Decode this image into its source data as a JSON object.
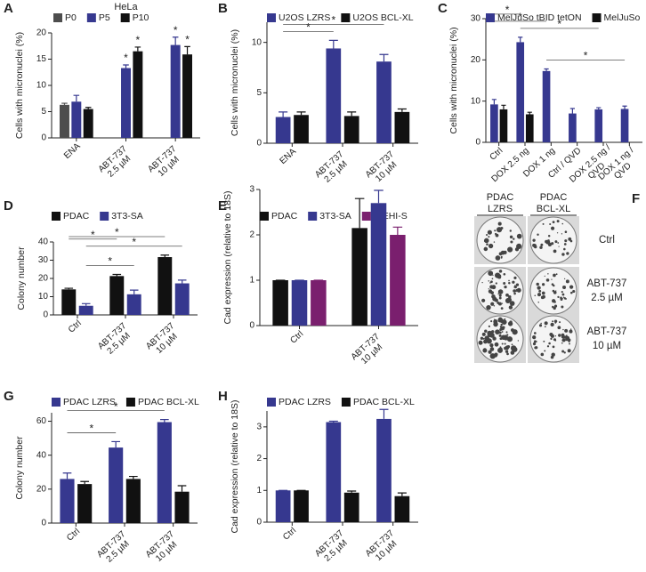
{
  "chart_data": [
    {
      "panel": "A",
      "type": "bar",
      "title": "HeLa",
      "y_label": "Cells with micronuclei (%)",
      "categories": [
        "ENA",
        [
          "ABT-737",
          "2.5 µM"
        ],
        [
          "ABT-737",
          "10 µM"
        ]
      ],
      "series": [
        {
          "name": "P0",
          "color": "#4d4d4d",
          "values": [
            6.3,
            null,
            null
          ],
          "errors": [
            0.3,
            null,
            null
          ]
        },
        {
          "name": "P5",
          "color": "#36388f",
          "values": [
            6.9,
            13.3,
            17.7
          ],
          "errors": [
            1.2,
            0.6,
            1.5
          ]
        },
        {
          "name": "P10",
          "color": "#111111",
          "values": [
            5.5,
            16.5,
            15.9
          ],
          "errors": [
            0.3,
            0.8,
            1.5
          ]
        }
      ],
      "ylim": [
        0,
        20
      ],
      "yticks": [
        0,
        5,
        10,
        15,
        20
      ],
      "significance": [
        {
          "label": "*",
          "series": 1,
          "category": 1
        },
        {
          "label": "*",
          "series": 2,
          "category": 1
        },
        {
          "label": "*",
          "series": 1,
          "category": 2
        },
        {
          "label": "*",
          "series": 2,
          "category": 2
        }
      ]
    },
    {
      "panel": "B",
      "type": "bar",
      "y_label": "Cells with micronuclei (%)",
      "categories": [
        "ENA",
        [
          "ABT-737",
          "2.5 µM"
        ],
        [
          "ABT-737",
          "10 µM"
        ]
      ],
      "series": [
        {
          "name": "U2OS LZRS",
          "color": "#36388f",
          "values": [
            2.6,
            9.4,
            8.1
          ],
          "errors": [
            0.5,
            0.8,
            0.7
          ]
        },
        {
          "name": "U2OS BCL-XL",
          "color": "#111111",
          "values": [
            2.8,
            2.7,
            3.1
          ],
          "errors": [
            0.3,
            0.4,
            0.3
          ]
        }
      ],
      "ylim": [
        0,
        12
      ],
      "yticks": [
        0,
        5,
        10
      ],
      "brackets": [
        {
          "label": "*",
          "series": 0,
          "from": 0,
          "to": 1
        },
        {
          "label": "*",
          "series": 0,
          "from": 0,
          "to": 2
        }
      ]
    },
    {
      "panel": "C",
      "type": "bar",
      "y_label": "Cells with micronuclei (%)",
      "categories": [
        "Ctrl",
        "DOX 2.5 ng",
        "DOX 1 ng",
        "Ctrl / QVD",
        [
          "DOX 2.5 ng /",
          "QVD"
        ],
        [
          "DOX 1 ng /",
          "QVD"
        ]
      ],
      "series": [
        {
          "name": "MelJuSo tBID tetON",
          "color": "#36388f",
          "values": [
            9.2,
            24.3,
            17.3,
            7.0,
            8.0,
            8.1
          ],
          "errors": [
            1.2,
            1.2,
            0.5,
            1.2,
            0.4,
            0.7
          ]
        },
        {
          "name": "MelJuSo",
          "color": "#111111",
          "values": [
            8.0,
            6.8,
            null,
            null,
            null,
            null
          ],
          "errors": [
            1.0,
            0.5,
            null,
            null,
            null,
            null
          ]
        }
      ],
      "ylim": [
        0,
        30
      ],
      "yticks": [
        0,
        10,
        20,
        30
      ],
      "brackets": [
        {
          "label": "*",
          "series": 0,
          "from": 2,
          "to": 5
        },
        {
          "label": "*",
          "series": 0,
          "from": 1,
          "to": 4
        },
        {
          "label": "*",
          "series": 0,
          "from": 0,
          "to": 2
        },
        {
          "label": "*",
          "series": 0,
          "from": 0,
          "to": 1
        }
      ]
    },
    {
      "panel": "D",
      "type": "bar",
      "y_label": "Colony number",
      "categories": [
        "Ctrl",
        [
          "ABT-737",
          "2.5 µM"
        ],
        [
          "ABT-737",
          "10 µM"
        ]
      ],
      "series": [
        {
          "name": "PDAC",
          "color": "#111111",
          "values": [
            14,
            21.3,
            31.7
          ],
          "errors": [
            0.6,
            0.9,
            1.1
          ]
        },
        {
          "name": "3T3-SA",
          "color": "#36388f",
          "values": [
            5,
            11.3,
            17.3
          ],
          "errors": [
            1.2,
            2.3,
            1.8
          ]
        }
      ],
      "ylim": [
        0,
        40
      ],
      "yticks": [
        0,
        10,
        20,
        30,
        40
      ],
      "brackets": [
        {
          "label": "*",
          "series": 1,
          "from": 0,
          "to": 1
        },
        {
          "label": "*",
          "series": 1,
          "from": 0,
          "to": 2
        },
        {
          "label": "*",
          "series": 0,
          "from": 0,
          "to": 1
        },
        {
          "label": "*",
          "series": 0,
          "from": 0,
          "to": 2
        }
      ]
    },
    {
      "panel": "E",
      "type": "bar",
      "y_label": "Cad expression (relative to 18S)",
      "categories": [
        "Ctrl",
        [
          "ABT-737",
          "10 µM"
        ]
      ],
      "series": [
        {
          "name": "PDAC",
          "color": "#111111",
          "values": [
            1,
            2.15
          ],
          "errors": [
            0,
            0.65
          ]
        },
        {
          "name": "3T3-SA",
          "color": "#36388f",
          "values": [
            1,
            2.7
          ],
          "errors": [
            0,
            0.28
          ]
        },
        {
          "name": "WEHI-S",
          "color": "#7a1f6e",
          "values": [
            1,
            2.0
          ],
          "errors": [
            0,
            0.17
          ]
        }
      ],
      "ylim": [
        0,
        3
      ],
      "yticks": [
        0,
        1,
        2,
        3
      ]
    },
    {
      "panel": "G",
      "type": "bar",
      "y_label": "Colony number",
      "categories": [
        "Ctrl",
        [
          "ABT-737",
          "2.5 µM"
        ],
        [
          "ABT-737",
          "10 µM"
        ]
      ],
      "series": [
        {
          "name": "PDAC LZRS",
          "color": "#36388f",
          "values": [
            26,
            44.5,
            59.5
          ],
          "errors": [
            3.5,
            3.5,
            1.5
          ]
        },
        {
          "name": "PDAC BCL-XL",
          "color": "#111111",
          "values": [
            23,
            26,
            18.5
          ],
          "errors": [
            1.5,
            1.5,
            3.5
          ]
        }
      ],
      "ylim": [
        0,
        65
      ],
      "yticks": [
        0,
        20,
        40,
        60
      ],
      "brackets": [
        {
          "label": "*",
          "series": 0,
          "from": 0,
          "to": 1
        },
        {
          "label": "*",
          "series": 0,
          "from": 0,
          "to": 2
        }
      ]
    },
    {
      "panel": "H",
      "type": "bar",
      "y_label": "Cad expression (relative to 18S)",
      "categories": [
        "Ctrl",
        [
          "ABT-737",
          "2.5 µM"
        ],
        [
          "ABT-737",
          "10 µM"
        ]
      ],
      "series": [
        {
          "name": "PDAC LZRS",
          "color": "#36388f",
          "values": [
            1,
            3.15,
            3.25
          ],
          "errors": [
            0,
            0.03,
            0.3
          ]
        },
        {
          "name": "PDAC BCL-XL",
          "color": "#111111",
          "values": [
            1,
            0.93,
            0.82
          ],
          "errors": [
            0,
            0.05,
            0.1
          ]
        }
      ],
      "ylim": [
        0,
        3.5
      ],
      "yticks": [
        0,
        1,
        2,
        3
      ]
    }
  ],
  "panel_f": {
    "panel": "F",
    "columns": [
      [
        "PDAC",
        "LZRS"
      ],
      [
        "PDAC",
        "BCL-XL"
      ]
    ],
    "rows": [
      [
        "Ctrl"
      ],
      [
        "ABT-737",
        "2.5 µM"
      ],
      [
        "ABT-737",
        "10 µM"
      ]
    ]
  }
}
